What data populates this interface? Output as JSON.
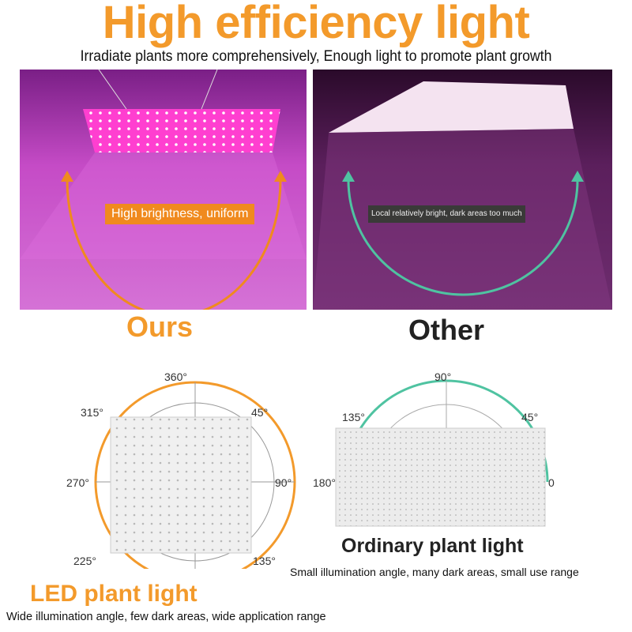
{
  "title": "High efficiency light",
  "subtitle": "Irradiate plants more comprehensively, Enough light to promote plant growth",
  "comparison": {
    "ours": {
      "label": "Ours",
      "callout": "High brightness, uniform",
      "arc_color": "#f08a1e"
    },
    "other": {
      "label": "Other",
      "callout": "Local relatively bright, dark areas too much",
      "arc_color": "#4fc3a1"
    }
  },
  "led_diagram": {
    "angles": {
      "top": "360°",
      "top_left": "315°",
      "top_right": "45°",
      "left": "270°",
      "right": "90°",
      "bottom_left": "225°",
      "bottom_right": "135°"
    },
    "title": "LED plant light",
    "caption": "Wide illumination angle, few dark areas, wide application range",
    "color": "#f39a2b"
  },
  "ordinary_diagram": {
    "angles": {
      "top": "90°",
      "top_left": "135°",
      "top_right": "45°",
      "left": "180°",
      "right": "0"
    },
    "title": "Ordinary plant light",
    "caption": "Small illumination angle, many dark areas, small use range",
    "color": "#4fc3a1"
  }
}
